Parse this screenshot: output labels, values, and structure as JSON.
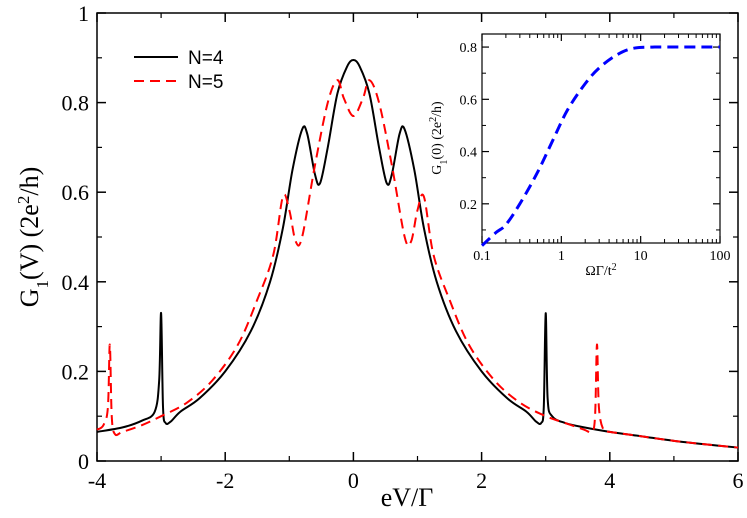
{
  "chart_data": [
    {
      "type": "line",
      "xlabel": "eV/Γ",
      "ylabel": "G1(V) (2e2/h)",
      "xlim": [
        -4,
        6
      ],
      "ylim": [
        0,
        1
      ],
      "x_ticks": [
        "-4",
        "-2",
        "0",
        "2",
        "4",
        "6"
      ],
      "y_ticks": [
        "0",
        "0.2",
        "0.4",
        "0.6",
        "0.8",
        "1"
      ],
      "legend_position": "top-left",
      "grid": false,
      "series": [
        {
          "name": "N=4",
          "color": "#000000",
          "style": "solid",
          "points": [
            [
              -4.0,
              0.065
            ],
            [
              -3.6,
              0.075
            ],
            [
              -3.3,
              0.09
            ],
            [
              -3.1,
              0.11
            ],
            [
              -3.03,
              0.18
            ],
            [
              -3.0,
              0.33
            ],
            [
              -2.97,
              0.12
            ],
            [
              -2.93,
              0.085
            ],
            [
              -2.85,
              0.088
            ],
            [
              -2.7,
              0.11
            ],
            [
              -2.4,
              0.14
            ],
            [
              -2.0,
              0.2
            ],
            [
              -1.6,
              0.29
            ],
            [
              -1.3,
              0.4
            ],
            [
              -1.1,
              0.52
            ],
            [
              -0.95,
              0.65
            ],
            [
              -0.8,
              0.74
            ],
            [
              -0.72,
              0.73
            ],
            [
              -0.6,
              0.64
            ],
            [
              -0.52,
              0.62
            ],
            [
              -0.4,
              0.7
            ],
            [
              -0.25,
              0.82
            ],
            [
              -0.1,
              0.88
            ],
            [
              0.0,
              0.895
            ],
            [
              0.1,
              0.88
            ],
            [
              0.25,
              0.82
            ],
            [
              0.4,
              0.7
            ],
            [
              0.52,
              0.62
            ],
            [
              0.6,
              0.64
            ],
            [
              0.72,
              0.73
            ],
            [
              0.8,
              0.74
            ],
            [
              0.95,
              0.65
            ],
            [
              1.1,
              0.52
            ],
            [
              1.3,
              0.4
            ],
            [
              1.6,
              0.29
            ],
            [
              2.0,
              0.2
            ],
            [
              2.4,
              0.14
            ],
            [
              2.7,
              0.11
            ],
            [
              2.85,
              0.088
            ],
            [
              2.93,
              0.085
            ],
            [
              2.97,
              0.12
            ],
            [
              3.0,
              0.33
            ],
            [
              3.03,
              0.14
            ],
            [
              3.1,
              0.1
            ],
            [
              3.3,
              0.085
            ],
            [
              3.6,
              0.075
            ],
            [
              4.0,
              0.065
            ],
            [
              4.5,
              0.055
            ],
            [
              5.0,
              0.045
            ],
            [
              5.5,
              0.037
            ],
            [
              6.0,
              0.03
            ]
          ]
        },
        {
          "name": "N=5",
          "color": "#ff0000",
          "style": "dashed",
          "points": [
            [
              -4.0,
              0.07
            ],
            [
              -3.9,
              0.08
            ],
            [
              -3.83,
              0.12
            ],
            [
              -3.8,
              0.26
            ],
            [
              -3.77,
              0.1
            ],
            [
              -3.72,
              0.06
            ],
            [
              -3.6,
              0.065
            ],
            [
              -3.3,
              0.08
            ],
            [
              -3.0,
              0.1
            ],
            [
              -2.6,
              0.13
            ],
            [
              -2.2,
              0.18
            ],
            [
              -1.8,
              0.26
            ],
            [
              -1.5,
              0.36
            ],
            [
              -1.25,
              0.46
            ],
            [
              -1.1,
              0.59
            ],
            [
              -1.0,
              0.56
            ],
            [
              -0.9,
              0.49
            ],
            [
              -0.8,
              0.5
            ],
            [
              -0.6,
              0.66
            ],
            [
              -0.4,
              0.8
            ],
            [
              -0.25,
              0.85
            ],
            [
              -0.15,
              0.81
            ],
            [
              0.0,
              0.77
            ],
            [
              0.15,
              0.81
            ],
            [
              0.25,
              0.85
            ],
            [
              0.4,
              0.8
            ],
            [
              0.6,
              0.66
            ],
            [
              0.8,
              0.5
            ],
            [
              0.9,
              0.49
            ],
            [
              1.0,
              0.56
            ],
            [
              1.1,
              0.59
            ],
            [
              1.25,
              0.46
            ],
            [
              1.5,
              0.36
            ],
            [
              1.8,
              0.26
            ],
            [
              2.2,
              0.18
            ],
            [
              2.6,
              0.13
            ],
            [
              3.0,
              0.1
            ],
            [
              3.3,
              0.085
            ],
            [
              3.6,
              0.07
            ],
            [
              3.72,
              0.065
            ],
            [
              3.77,
              0.1
            ],
            [
              3.8,
              0.26
            ],
            [
              3.83,
              0.12
            ],
            [
              3.9,
              0.07
            ],
            [
              4.0,
              0.065
            ],
            [
              4.5,
              0.055
            ],
            [
              5.0,
              0.045
            ],
            [
              5.5,
              0.037
            ],
            [
              6.0,
              0.03
            ]
          ]
        }
      ]
    },
    {
      "type": "line",
      "xlabel": "ΩΓ/t2",
      "ylabel": "G1(0) (2e2/h)",
      "xscale": "log",
      "xlim": [
        0.1,
        100
      ],
      "ylim": [
        0.05,
        0.85
      ],
      "x_ticks": [
        "0.1",
        "1",
        "10",
        "100"
      ],
      "y_ticks": [
        "0.2",
        "0.4",
        "0.6",
        "0.8"
      ],
      "grid": false,
      "series": [
        {
          "color": "#0000ff",
          "style": "dashed",
          "points": [
            [
              0.1,
              0.04
            ],
            [
              0.15,
              0.09
            ],
            [
              0.2,
              0.12
            ],
            [
              0.3,
              0.2
            ],
            [
              0.5,
              0.32
            ],
            [
              0.8,
              0.45
            ],
            [
              1.2,
              0.56
            ],
            [
              2.0,
              0.66
            ],
            [
              3.0,
              0.72
            ],
            [
              5.0,
              0.77
            ],
            [
              8.0,
              0.795
            ],
            [
              15.0,
              0.8
            ],
            [
              30.0,
              0.8
            ],
            [
              60.0,
              0.8
            ],
            [
              100.0,
              0.8
            ]
          ]
        }
      ]
    }
  ]
}
